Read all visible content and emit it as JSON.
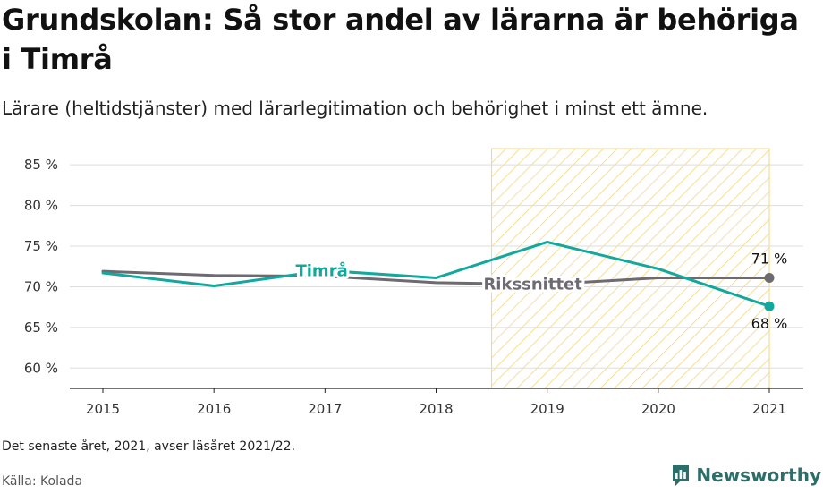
{
  "title": "Grundskolan: Så stor andel av lärarna är behöriga i Timrå",
  "subtitle": "Lärare (heltidstjänster) med lärarlegitimation och behörighet i minst ett ämne.",
  "note": "Det senaste året, 2021, avser läsåret 2021/22.",
  "source": "Källa: Kolada",
  "brand": "Newsworthy",
  "colors": {
    "timra": "#13a89e",
    "riks": "#6d6a72",
    "highlight": "#f5d67a",
    "grid": "#dddddd",
    "brand": "#2c6e6a"
  },
  "chart_data": {
    "type": "line",
    "x": [
      2015,
      2016,
      2017,
      2018,
      2019,
      2020,
      2021
    ],
    "ylim": [
      57.5,
      87
    ],
    "yticks": [
      60,
      65,
      70,
      75,
      80,
      85
    ],
    "ytick_labels": [
      "60 %",
      "65 %",
      "70 %",
      "75 %",
      "80 %",
      "85 %"
    ],
    "grid": true,
    "highlight_range": [
      2018.5,
      2021
    ],
    "series": [
      {
        "name": "Timrå",
        "values": [
          71.7,
          70.1,
          72.0,
          71.1,
          75.5,
          72.2,
          67.6
        ],
        "end_label": "68 %"
      },
      {
        "name": "Rikssnittet",
        "values": [
          71.9,
          71.4,
          71.3,
          70.5,
          70.3,
          71.1,
          71.1
        ],
        "end_label": "71 %"
      }
    ]
  }
}
